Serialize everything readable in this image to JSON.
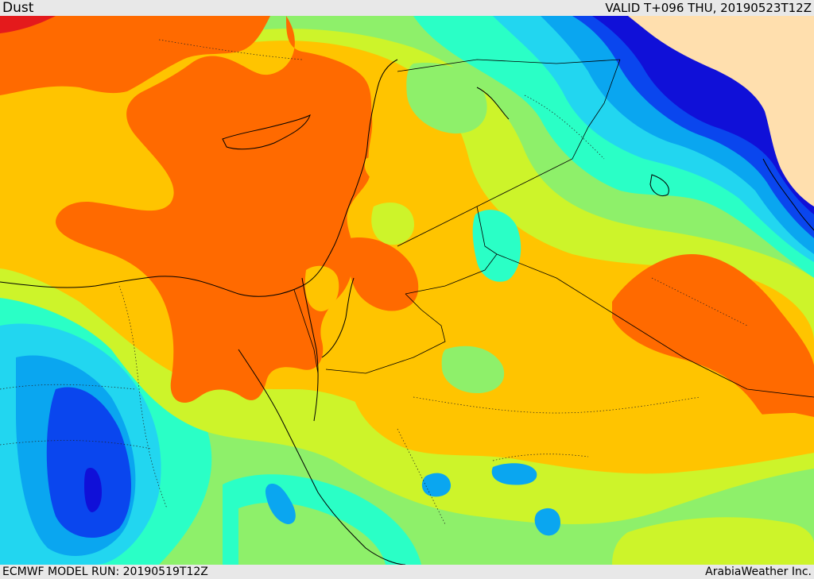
{
  "header": {
    "product": "Dust",
    "valid": "VALID T+096 THU, 20190523T12Z"
  },
  "footer": {
    "model_run": "ECMWF MODEL RUN: 20190519T12Z",
    "credit": "ArabiaWeather Inc."
  },
  "map": {
    "palette": {
      "red": "#e41a1c",
      "orange": "#ff6a00",
      "amber": "#ffc400",
      "lime": "#cdf42a",
      "green": "#8ef06a",
      "aqua": "#2affc6",
      "cyan": "#22d6f0",
      "sky": "#0aa6f0",
      "blue": "#0a46ee",
      "navy": "#1010d8",
      "land_no_data": "#ffdfae"
    }
  }
}
